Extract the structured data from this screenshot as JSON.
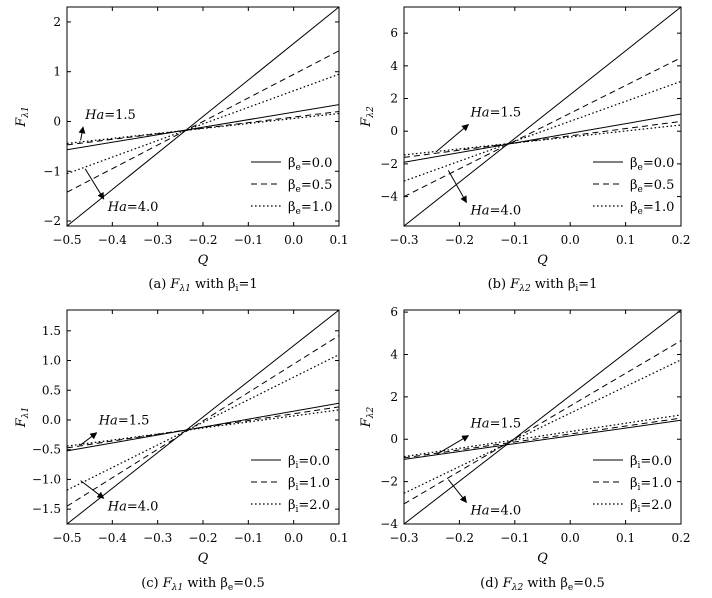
{
  "chart_data": [
    {
      "type": "line",
      "caption": {
        "pre": "(a) ",
        "sym": "F",
        "sub": "λ1",
        "post": " with β",
        "post_sub": "i",
        "post_tail": "=1"
      },
      "xlabel": "Q",
      "ylabel": {
        "sym": "F",
        "sub": "λ1"
      },
      "xlim": [
        -0.5,
        0.1
      ],
      "ylim": [
        -2.1,
        2.3
      ],
      "xticks": [
        -0.5,
        -0.4,
        -0.3,
        -0.2,
        -0.1,
        0.0,
        0.1
      ],
      "xtick_labels": [
        "−0.5",
        "−0.4",
        "−0.3",
        "−0.2",
        "−0.1",
        "0.0",
        "0.1"
      ],
      "yticks": [
        -2,
        -1,
        0,
        1,
        2
      ],
      "ytick_labels": [
        "−2",
        "−1",
        "0",
        "1",
        "2"
      ],
      "legend": {
        "position": "bottom-right",
        "entries": [
          {
            "sym": "β",
            "sub": "e",
            "value": "=0.0",
            "style": "solid"
          },
          {
            "sym": "β",
            "sub": "e",
            "value": "=0.5",
            "style": "dashed"
          },
          {
            "sym": "β",
            "sub": "e",
            "value": "=1.0",
            "style": "dotted"
          }
        ]
      },
      "annotations": [
        {
          "sym": "Ha",
          "value": "=1.5",
          "x": -0.46,
          "y": 0.05,
          "arrow_to": [
            -0.47,
            -0.38
          ]
        },
        {
          "sym": "Ha",
          "value": "=4.0",
          "x": -0.41,
          "y": -1.8,
          "arrow_to": [
            -0.46,
            -0.95
          ]
        }
      ],
      "series": [
        {
          "style": "solid",
          "x": [
            -0.5,
            0.1
          ],
          "y": [
            -2.1,
            2.3
          ]
        },
        {
          "style": "dashed",
          "x": [
            -0.5,
            0.1
          ],
          "y": [
            -1.42,
            1.42
          ]
        },
        {
          "style": "dotted",
          "x": [
            -0.5,
            0.1
          ],
          "y": [
            -1.05,
            0.95
          ]
        },
        {
          "style": "solid",
          "x": [
            -0.5,
            0.1
          ],
          "y": [
            -0.57,
            0.34
          ]
        },
        {
          "style": "dashed",
          "x": [
            -0.5,
            0.1
          ],
          "y": [
            -0.47,
            0.2
          ]
        },
        {
          "style": "dotted",
          "x": [
            -0.5,
            0.1
          ],
          "y": [
            -0.44,
            0.16
          ]
        }
      ]
    },
    {
      "type": "line",
      "caption": {
        "pre": "(b) ",
        "sym": "F",
        "sub": "λ2",
        "post": " with β",
        "post_sub": "i",
        "post_tail": "=1"
      },
      "xlabel": "Q",
      "ylabel": {
        "sym": "F",
        "sub": "λ2"
      },
      "xlim": [
        -0.3,
        0.2
      ],
      "ylim": [
        -5.8,
        7.6
      ],
      "xticks": [
        -0.3,
        -0.2,
        -0.1,
        0.0,
        0.1,
        0.2
      ],
      "xtick_labels": [
        "−0.3",
        "−0.2",
        "−0.1",
        "0.0",
        "0.1",
        "0.2"
      ],
      "yticks": [
        -4,
        -2,
        0,
        2,
        4,
        6
      ],
      "ytick_labels": [
        "−4",
        "−2",
        "0",
        "2",
        "4",
        "6"
      ],
      "legend": {
        "position": "bottom-right",
        "entries": [
          {
            "sym": "β",
            "sub": "e",
            "value": "=0.0",
            "style": "solid"
          },
          {
            "sym": "β",
            "sub": "e",
            "value": "=0.5",
            "style": "dashed"
          },
          {
            "sym": "β",
            "sub": "e",
            "value": "=1.0",
            "style": "dotted"
          }
        ]
      },
      "annotations": [
        {
          "sym": "Ha",
          "value": "=1.5",
          "x": -0.18,
          "y": 0.9,
          "arrow_to": [
            -0.24,
            -1.2
          ]
        },
        {
          "sym": "Ha",
          "value": "=4.0",
          "x": -0.18,
          "y": -5.1,
          "arrow_to": [
            -0.22,
            -2.4
          ]
        }
      ],
      "series": [
        {
          "style": "solid",
          "x": [
            -0.3,
            0.2
          ],
          "y": [
            -5.8,
            7.6
          ]
        },
        {
          "style": "dashed",
          "x": [
            -0.3,
            0.2
          ],
          "y": [
            -4.0,
            4.5
          ]
        },
        {
          "style": "dotted",
          "x": [
            -0.3,
            0.2
          ],
          "y": [
            -3.05,
            3.05
          ]
        },
        {
          "style": "solid",
          "x": [
            -0.3,
            0.2
          ],
          "y": [
            -1.9,
            1.05
          ]
        },
        {
          "style": "dashed",
          "x": [
            -0.3,
            0.2
          ],
          "y": [
            -1.6,
            0.6
          ]
        },
        {
          "style": "dotted",
          "x": [
            -0.3,
            0.2
          ],
          "y": [
            -1.45,
            0.38
          ]
        }
      ]
    },
    {
      "type": "line",
      "caption": {
        "pre": "(c) ",
        "sym": "F",
        "sub": "λ1",
        "post": " with β",
        "post_sub": "e",
        "post_tail": "=0.5"
      },
      "xlabel": "Q",
      "ylabel": {
        "sym": "F",
        "sub": "λ1"
      },
      "xlim": [
        -0.5,
        0.1
      ],
      "ylim": [
        -1.75,
        1.85
      ],
      "xticks": [
        -0.5,
        -0.4,
        -0.3,
        -0.2,
        -0.1,
        0.0,
        0.1
      ],
      "xtick_labels": [
        "−0.5",
        "−0.4",
        "−0.3",
        "−0.2",
        "−0.1",
        "0.0",
        "0.1"
      ],
      "yticks": [
        -1.5,
        -1.0,
        -0.5,
        0.0,
        0.5,
        1.0,
        1.5
      ],
      "ytick_labels": [
        "−1.5",
        "−1.0",
        "−0.5",
        "0.0",
        "0.5",
        "1.0",
        "1.5"
      ],
      "legend": {
        "position": "bottom-right",
        "entries": [
          {
            "sym": "β",
            "sub": "i",
            "value": "=0.0",
            "style": "solid"
          },
          {
            "sym": "β",
            "sub": "i",
            "value": "=1.0",
            "style": "dashed"
          },
          {
            "sym": "β",
            "sub": "i",
            "value": "=2.0",
            "style": "dotted"
          }
        ]
      },
      "annotations": [
        {
          "sym": "Ha",
          "value": "=1.5",
          "x": -0.43,
          "y": -0.08,
          "arrow_to": [
            -0.47,
            -0.42
          ]
        },
        {
          "sym": "Ha",
          "value": "=4.0",
          "x": -0.41,
          "y": -1.52,
          "arrow_to": [
            -0.47,
            -1.02
          ]
        }
      ],
      "series": [
        {
          "style": "solid",
          "x": [
            -0.5,
            0.1
          ],
          "y": [
            -1.75,
            1.85
          ]
        },
        {
          "style": "dashed",
          "x": [
            -0.5,
            0.1
          ],
          "y": [
            -1.45,
            1.42
          ]
        },
        {
          "style": "dotted",
          "x": [
            -0.5,
            0.1
          ],
          "y": [
            -1.18,
            1.1
          ]
        },
        {
          "style": "solid",
          "x": [
            -0.5,
            0.1
          ],
          "y": [
            -0.52,
            0.28
          ]
        },
        {
          "style": "dashed",
          "x": [
            -0.5,
            0.1
          ],
          "y": [
            -0.47,
            0.22
          ]
        },
        {
          "style": "dotted",
          "x": [
            -0.5,
            0.1
          ],
          "y": [
            -0.44,
            0.17
          ]
        }
      ]
    },
    {
      "type": "line",
      "caption": {
        "pre": "(d) ",
        "sym": "F",
        "sub": "λ2",
        "post": " with β",
        "post_sub": "e",
        "post_tail": "=0.5"
      },
      "xlabel": "Q",
      "ylabel": {
        "sym": "F",
        "sub": "λ2"
      },
      "xlim": [
        -0.3,
        0.2
      ],
      "ylim": [
        -4.0,
        6.1
      ],
      "xticks": [
        -0.3,
        -0.2,
        -0.1,
        0.0,
        0.1,
        0.2
      ],
      "xtick_labels": [
        "−0.3",
        "−0.2",
        "−0.1",
        "0.0",
        "0.1",
        "0.2"
      ],
      "yticks": [
        -4,
        -2,
        0,
        2,
        4,
        6
      ],
      "ytick_labels": [
        "−4",
        "−2",
        "0",
        "2",
        "4",
        "6"
      ],
      "legend": {
        "position": "bottom-right",
        "entries": [
          {
            "sym": "β",
            "sub": "i",
            "value": "=0.0",
            "style": "solid"
          },
          {
            "sym": "β",
            "sub": "i",
            "value": "=1.0",
            "style": "dashed"
          },
          {
            "sym": "β",
            "sub": "i",
            "value": "=2.0",
            "style": "dotted"
          }
        ]
      },
      "annotations": [
        {
          "sym": "Ha",
          "value": "=1.5",
          "x": -0.18,
          "y": 0.55,
          "arrow_to": [
            -0.24,
            -0.7
          ]
        },
        {
          "sym": "Ha",
          "value": "=4.0",
          "x": -0.18,
          "y": -3.55,
          "arrow_to": [
            -0.22,
            -1.9
          ]
        }
      ],
      "series": [
        {
          "style": "solid",
          "x": [
            -0.3,
            0.2
          ],
          "y": [
            -4.0,
            6.1
          ]
        },
        {
          "style": "dashed",
          "x": [
            -0.3,
            0.2
          ],
          "y": [
            -3.05,
            4.65
          ]
        },
        {
          "style": "dotted",
          "x": [
            -0.3,
            0.2
          ],
          "y": [
            -2.55,
            3.75
          ]
        },
        {
          "style": "solid",
          "x": [
            -0.3,
            0.2
          ],
          "y": [
            -0.95,
            0.9
          ]
        },
        {
          "style": "dashed",
          "x": [
            -0.3,
            0.2
          ],
          "y": [
            -0.88,
            1.0
          ]
        },
        {
          "style": "dotted",
          "x": [
            -0.3,
            0.2
          ],
          "y": [
            -0.82,
            1.15
          ]
        }
      ]
    }
  ]
}
